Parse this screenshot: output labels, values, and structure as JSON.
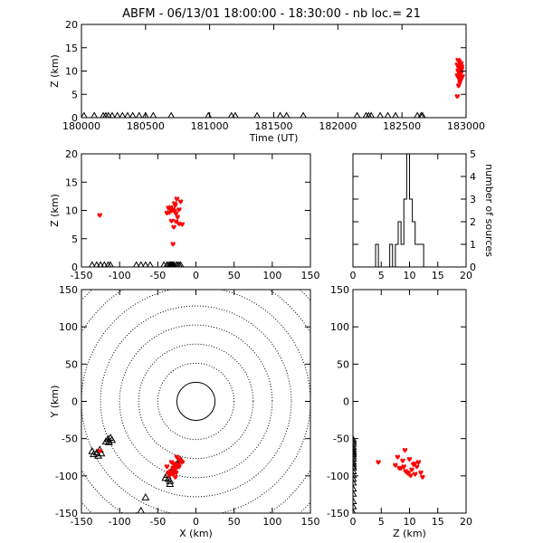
{
  "chart_data": {
    "title": "ABFM - 06/13/01 18:00:00 - 18:30:00 - nb loc.=      21",
    "colors": {
      "source": "#ff0000",
      "station": "#000000",
      "ring": "#000000"
    },
    "panels": {
      "time_height": {
        "type": "scatter",
        "xlabel": "Time (UT)",
        "ylabel": "Z (km)",
        "xlim": [
          180000,
          183000
        ],
        "ylim": [
          0,
          20
        ],
        "xticks": [
          180000,
          180500,
          181000,
          181500,
          182000,
          182500,
          183000
        ],
        "yticks": [
          0,
          5,
          10,
          15,
          20
        ],
        "sources": [
          [
            182960,
            4.5
          ],
          [
            182970,
            6.8
          ],
          [
            182980,
            7.5
          ],
          [
            182990,
            8.2
          ],
          [
            183000,
            8.8
          ],
          [
            182960,
            9.0
          ],
          [
            182975,
            9.3
          ],
          [
            182990,
            9.6
          ],
          [
            182965,
            10.0
          ],
          [
            182985,
            10.2
          ],
          [
            182995,
            10.4
          ],
          [
            182970,
            10.7
          ],
          [
            182980,
            11.0
          ],
          [
            182960,
            11.3
          ],
          [
            182990,
            11.6
          ],
          [
            182975,
            12.0
          ],
          [
            182965,
            12.3
          ],
          [
            182985,
            9.8
          ],
          [
            182995,
            10.9
          ],
          [
            182970,
            8.5
          ],
          [
            182980,
            7.9
          ]
        ],
        "stations_x": [
          180020,
          180100,
          180170,
          180190,
          180210,
          180240,
          180280,
          180320,
          180360,
          180400,
          180450,
          180500,
          180560,
          180700,
          180990,
          181170,
          181200,
          181370,
          181550,
          181600,
          181730,
          182150,
          182220,
          182240,
          182260,
          182330,
          182390,
          182450,
          182620,
          182650,
          182660
        ]
      },
      "xz": {
        "type": "scatter",
        "xlabel": "",
        "ylabel": "Z (km)",
        "xlim": [
          -150,
          150
        ],
        "ylim": [
          0,
          20
        ],
        "xticks": [
          -150,
          -100,
          -50,
          0,
          50,
          100,
          150
        ],
        "yticks": [
          0,
          5,
          10,
          15,
          20
        ],
        "sources": [
          [
            -126,
            9.1
          ],
          [
            -32,
            8.1
          ],
          [
            -28,
            9.8
          ],
          [
            -30,
            10.2
          ],
          [
            -25,
            12.0
          ],
          [
            -20,
            11.5
          ],
          [
            -38,
            9.5
          ],
          [
            -33,
            10.5
          ],
          [
            -26,
            9.4
          ],
          [
            -22,
            7.6
          ],
          [
            -35,
            9.6
          ],
          [
            -28,
            11.2
          ],
          [
            -24,
            8.8
          ],
          [
            -30,
            4.0
          ],
          [
            -22,
            10.1
          ],
          [
            -18,
            7.5
          ],
          [
            -36,
            10.4
          ],
          [
            -27,
            10.9
          ],
          [
            -32,
            9.9
          ],
          [
            -29,
            7.0
          ],
          [
            -26,
            8.0
          ]
        ],
        "stations_x": [
          -136,
          -130,
          -125,
          -120,
          -115,
          -112,
          -78,
          -72,
          -66,
          -60,
          -42,
          -38,
          -36,
          -34,
          -33,
          -32,
          -31,
          -30,
          -29,
          -26,
          -24,
          -22,
          -20
        ]
      },
      "histogram": {
        "type": "bar",
        "xlabel": "",
        "ylabel": "number of sources",
        "xlim": [
          0,
          20
        ],
        "ylim": [
          0,
          5
        ],
        "xticks": [
          0,
          5,
          10,
          15,
          20
        ],
        "yticks": [
          0,
          1,
          2,
          3,
          4,
          5
        ],
        "bin_width": 0.5,
        "bins": [
          [
            4.0,
            1
          ],
          [
            6.5,
            1
          ],
          [
            7.5,
            1
          ],
          [
            8.0,
            2
          ],
          [
            8.5,
            1
          ],
          [
            9.0,
            3
          ],
          [
            9.5,
            5
          ],
          [
            10.0,
            3
          ],
          [
            10.5,
            2
          ],
          [
            11.0,
            1
          ],
          [
            11.5,
            1
          ],
          [
            12.0,
            1
          ]
        ]
      },
      "xy": {
        "type": "scatter",
        "xlabel": "X (km)",
        "ylabel": "Y (km)",
        "xlim": [
          -150,
          150
        ],
        "ylim": [
          -150,
          150
        ],
        "xticks": [
          -150,
          -100,
          -50,
          0,
          50,
          100,
          150
        ],
        "yticks": [
          -150,
          -100,
          -50,
          0,
          50,
          100,
          150
        ],
        "ring_radii": [
          25,
          50,
          75,
          100,
          125,
          150,
          175,
          200
        ],
        "sources": [
          [
            -126,
            -67
          ],
          [
            -32,
            -82
          ],
          [
            -28,
            -86
          ],
          [
            -30,
            -90
          ],
          [
            -25,
            -75
          ],
          [
            -20,
            -80
          ],
          [
            -38,
            -88
          ],
          [
            -33,
            -94
          ],
          [
            -26,
            -96
          ],
          [
            -22,
            -78
          ],
          [
            -35,
            -100
          ],
          [
            -28,
            -92
          ],
          [
            -24,
            -85
          ],
          [
            -30,
            -98
          ],
          [
            -22,
            -88
          ],
          [
            -18,
            -82
          ],
          [
            -36,
            -96
          ],
          [
            -27,
            -102
          ],
          [
            -32,
            -97
          ],
          [
            -29,
            -84
          ],
          [
            -26,
            -90
          ]
        ],
        "stations": [
          [
            -136,
            -68
          ],
          [
            -134,
            -72
          ],
          [
            -130,
            -70
          ],
          [
            -128,
            -74
          ],
          [
            -126,
            -66
          ],
          [
            -124,
            -71
          ],
          [
            -118,
            -55
          ],
          [
            -115,
            -52
          ],
          [
            -112,
            -50
          ],
          [
            -114,
            -56
          ],
          [
            -110,
            -53
          ],
          [
            -78,
            -155
          ],
          [
            -72,
            -148
          ],
          [
            -66,
            -130
          ],
          [
            -38,
            -100
          ],
          [
            -36,
            -105
          ],
          [
            -34,
            -108
          ],
          [
            -32,
            -95
          ],
          [
            -30,
            -92
          ],
          [
            -28,
            -88
          ],
          [
            -24,
            -84
          ],
          [
            -20,
            -80
          ],
          [
            -34,
            -112
          ],
          [
            -40,
            -104
          ]
        ]
      },
      "zy": {
        "type": "scatter",
        "xlabel": "Z (km)",
        "ylabel": "",
        "xlim": [
          0,
          20
        ],
        "ylim": [
          -150,
          150
        ],
        "xticks": [
          0,
          5,
          10,
          15,
          20
        ],
        "yticks": [
          -150,
          -100,
          -50,
          0,
          50,
          100,
          150
        ],
        "sources": [
          [
            4.5,
            -82
          ],
          [
            7.5,
            -86
          ],
          [
            8.2,
            -90
          ],
          [
            8.8,
            -80
          ],
          [
            9.0,
            -88
          ],
          [
            9.3,
            -94
          ],
          [
            9.6,
            -96
          ],
          [
            10.0,
            -78
          ],
          [
            10.2,
            -100
          ],
          [
            10.4,
            -92
          ],
          [
            10.7,
            -85
          ],
          [
            11.0,
            -98
          ],
          [
            11.3,
            -88
          ],
          [
            11.6,
            -82
          ],
          [
            12.0,
            -96
          ],
          [
            12.3,
            -102
          ],
          [
            9.8,
            -97
          ],
          [
            10.9,
            -84
          ],
          [
            8.5,
            -90
          ],
          [
            7.9,
            -75
          ],
          [
            9.2,
            -66
          ]
        ],
        "stations_y": [
          -52,
          -55,
          -58,
          -62,
          -65,
          -68,
          -70,
          -72,
          -75,
          -78,
          -82,
          -85,
          -88,
          -90,
          -95,
          -100,
          -105,
          -110,
          -118,
          -125,
          -135,
          -142,
          -150
        ]
      }
    }
  }
}
